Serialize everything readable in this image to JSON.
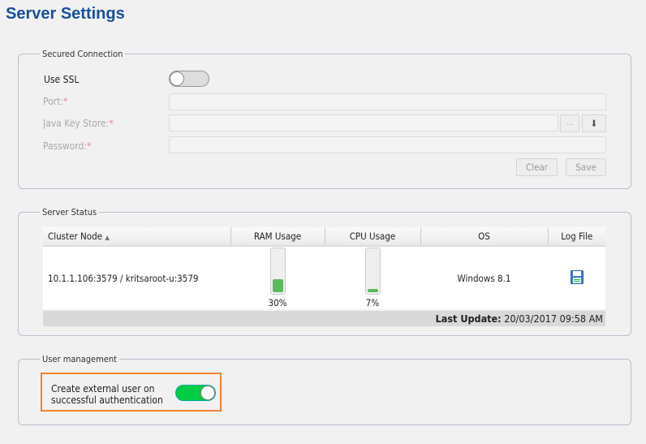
{
  "page": {
    "title": "Server Settings"
  },
  "secured": {
    "legend": "Secured Connection",
    "use_ssl": "Use SSL",
    "ssl_on": false,
    "port": "Port:",
    "jks": "Java Key Store:",
    "password": "Password:",
    "required": "*",
    "browse": "...",
    "clear": "Clear",
    "save": "Save"
  },
  "status": {
    "legend": "Server Status",
    "columns": [
      "Cluster Node",
      "RAM Usage",
      "CPU Usage",
      "OS",
      "Log File"
    ],
    "sort_icon": "▲",
    "rows": [
      {
        "node": "10.1.1.106:3579 / kritsaroot-u:3579",
        "ram": 30,
        "ram_label": "30%",
        "cpu": 7,
        "cpu_label": "7%",
        "os": "Windows 8.1"
      }
    ],
    "last_update_label": "Last Update:",
    "last_update": "20/03/2017 09:58 AM"
  },
  "users": {
    "legend": "User management",
    "create_external": "Create external user on successful authentication",
    "toggle_on": true,
    "accent": "#00cc44",
    "highlight": "#f0822e"
  }
}
